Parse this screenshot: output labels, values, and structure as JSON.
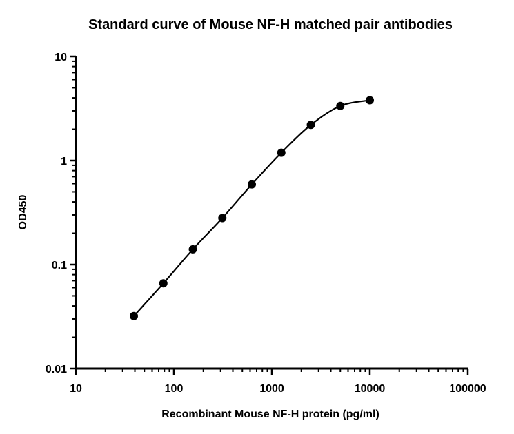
{
  "chart_data": {
    "type": "scatter",
    "title": "Standard curve of Mouse NF-H matched pair antibodies",
    "xlabel": "Recombinant Mouse NF-H protein (pg/ml)",
    "ylabel": "OD450",
    "x_scale": "log",
    "y_scale": "log",
    "xlim": [
      10,
      100000
    ],
    "ylim": [
      0.01,
      10
    ],
    "x_ticks": [
      "10",
      "100",
      "1000",
      "10000",
      "100000"
    ],
    "y_ticks": [
      "0.01",
      "0.1",
      "1",
      "10"
    ],
    "grid": false,
    "series": [
      {
        "x": [
          39.06,
          78.13,
          156.25,
          312.5,
          625,
          1250,
          2500,
          5000,
          10000
        ],
        "y": [
          0.032,
          0.066,
          0.14,
          0.28,
          0.59,
          1.19,
          2.2,
          3.35,
          3.8
        ],
        "fit_curve": true,
        "color": "#000000"
      }
    ]
  }
}
